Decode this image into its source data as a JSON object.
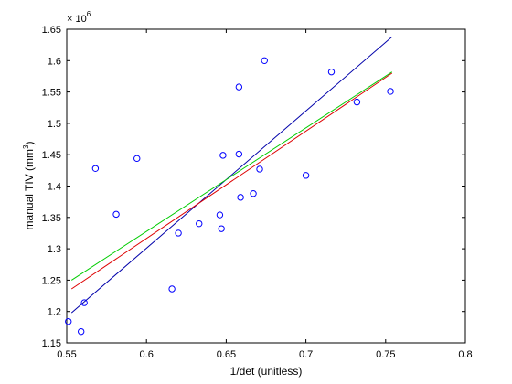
{
  "chart_data": {
    "type": "scatter",
    "title": "",
    "xlabel": "1/det (unitless)",
    "ylabel_main": "manual TIV (mm",
    "ylabel_sup": "3",
    "ylabel_end": ")",
    "exponent_base": "× 10",
    "exponent_power": "6",
    "xlim": [
      0.55,
      0.8
    ],
    "ylim": [
      1.15,
      1.65
    ],
    "xticks": [
      0.55,
      0.6,
      0.65,
      0.7,
      0.75,
      0.8
    ],
    "xtick_labels": [
      "0.55",
      "0.6",
      "0.65",
      "0.7",
      "0.75",
      "0.8"
    ],
    "yticks": [
      1.15,
      1.2,
      1.25,
      1.3,
      1.35,
      1.4,
      1.45,
      1.5,
      1.55,
      1.6,
      1.65
    ],
    "ytick_labels": [
      "1.15",
      "1.2",
      "1.25",
      "1.3",
      "1.35",
      "1.4",
      "1.45",
      "1.5",
      "1.55",
      "1.6",
      "1.65"
    ],
    "grid": false,
    "legend": "none",
    "marker_color": "#0000ff",
    "points": [
      {
        "x": 0.551,
        "y": 1.184
      },
      {
        "x": 0.559,
        "y": 1.168
      },
      {
        "x": 0.561,
        "y": 1.214
      },
      {
        "x": 0.568,
        "y": 1.428
      },
      {
        "x": 0.581,
        "y": 1.355
      },
      {
        "x": 0.594,
        "y": 1.444
      },
      {
        "x": 0.616,
        "y": 1.236
      },
      {
        "x": 0.62,
        "y": 1.325
      },
      {
        "x": 0.633,
        "y": 1.34
      },
      {
        "x": 0.646,
        "y": 1.354
      },
      {
        "x": 0.647,
        "y": 1.332
      },
      {
        "x": 0.648,
        "y": 1.449
      },
      {
        "x": 0.658,
        "y": 1.558
      },
      {
        "x": 0.658,
        "y": 1.451
      },
      {
        "x": 0.659,
        "y": 1.382
      },
      {
        "x": 0.667,
        "y": 1.388
      },
      {
        "x": 0.671,
        "y": 1.427
      },
      {
        "x": 0.674,
        "y": 1.6
      },
      {
        "x": 0.7,
        "y": 1.417
      },
      {
        "x": 0.716,
        "y": 1.582
      },
      {
        "x": 0.732,
        "y": 1.534
      },
      {
        "x": 0.753,
        "y": 1.551
      }
    ],
    "lines": [
      {
        "color": "#0000aa",
        "x": [
          0.553,
          0.754
        ],
        "y": [
          1.198,
          1.638
        ]
      },
      {
        "color": "#00cc00",
        "x": [
          0.553,
          0.754
        ],
        "y": [
          1.25,
          1.582
        ]
      },
      {
        "color": "#dd0000",
        "x": [
          0.553,
          0.754
        ],
        "y": [
          1.236,
          1.58
        ]
      }
    ]
  }
}
